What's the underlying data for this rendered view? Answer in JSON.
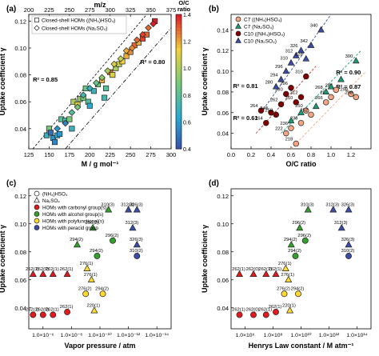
{
  "chart_data": [
    {
      "panel": "(a)",
      "type": "scatter",
      "xlabel": "M / g mol⁻¹",
      "x2label": "m/z",
      "ylabel": "Uptake coefficient γ",
      "xlim": [
        125,
        300
      ],
      "ylim": [
        0.025,
        0.125
      ],
      "x2lim": [
        200,
        375
      ],
      "xticks": [
        125,
        150,
        175,
        200,
        225,
        250,
        275,
        300
      ],
      "x2ticks": [
        200,
        225,
        250,
        275,
        300,
        325,
        350,
        375
      ],
      "yticks": [
        0.04,
        0.06,
        0.08,
        0.1,
        0.12
      ],
      "colorbar": {
        "label": "O/C ratio",
        "min": 0.4,
        "max": 1.4,
        "ticks": [
          0.4,
          0.6,
          0.8,
          1.0,
          1.2,
          1.4
        ]
      },
      "legend": {
        "position": "top-left",
        "entries": [
          "Closed-shell HOMs ((NH₄)HSO₄)",
          "Closed-shell HOMs (Na₂SO₄)"
        ]
      },
      "annotations": [
        "R² = 0.85",
        "R² = 0.80"
      ],
      "series": [
        {
          "name": "Closed-shell HOMs ((NH₄)HSO₄)",
          "marker": "square",
          "points": [
            [
              147,
              0.035,
              0.7
            ],
            [
              150,
              0.04,
              0.9
            ],
            [
              152,
              0.037,
              0.5
            ],
            [
              155,
              0.033,
              0.6
            ],
            [
              157,
              0.03,
              0.55
            ],
            [
              160,
              0.035,
              0.65
            ],
            [
              163,
              0.036,
              0.6
            ],
            [
              165,
              0.047,
              0.8
            ],
            [
              170,
              0.046,
              0.75
            ],
            [
              175,
              0.047,
              0.9
            ],
            [
              178,
              0.04,
              0.7
            ],
            [
              180,
              0.06,
              1.0
            ],
            [
              185,
              0.058,
              1.1
            ],
            [
              188,
              0.062,
              0.95
            ],
            [
              192,
              0.063,
              0.9
            ],
            [
              195,
              0.07,
              0.85
            ],
            [
              198,
              0.06,
              0.8
            ],
            [
              200,
              0.057,
              0.65
            ],
            [
              205,
              0.068,
              0.7
            ],
            [
              210,
              0.073,
              0.9
            ],
            [
              215,
              0.076,
              1.2
            ],
            [
              218,
              0.063,
              0.75
            ],
            [
              220,
              0.07,
              0.8
            ],
            [
              225,
              0.082,
              1.3
            ],
            [
              228,
              0.08,
              1.1
            ],
            [
              232,
              0.085,
              1.0
            ],
            [
              236,
              0.088,
              1.05
            ],
            [
              240,
              0.09,
              1.15
            ],
            [
              245,
              0.094,
              1.2
            ],
            [
              250,
              0.097,
              1.25
            ],
            [
              255,
              0.102,
              1.3
            ],
            [
              260,
              0.104,
              1.2
            ],
            [
              265,
              0.107,
              1.35
            ],
            [
              270,
              0.11,
              1.3
            ],
            [
              280,
              0.12,
              1.4
            ]
          ]
        },
        {
          "name": "Closed-shell HOMs (Na₂SO₄)",
          "marker": "diamond",
          "points": [
            [
              160,
              0.04,
              0.6
            ],
            [
              170,
              0.044,
              0.55
            ],
            [
              178,
              0.052,
              0.8
            ],
            [
              185,
              0.056,
              0.9
            ],
            [
              192,
              0.065,
              0.75
            ],
            [
              200,
              0.07,
              0.7
            ],
            [
              208,
              0.074,
              0.85
            ],
            [
              215,
              0.078,
              0.95
            ],
            [
              222,
              0.083,
              1.0
            ],
            [
              230,
              0.088,
              1.1
            ],
            [
              238,
              0.092,
              1.05
            ],
            [
              245,
              0.098,
              1.2
            ],
            [
              252,
              0.1,
              1.25
            ],
            [
              258,
              0.106,
              1.3
            ],
            [
              265,
              0.11,
              1.35
            ],
            [
              272,
              0.115,
              1.3
            ],
            [
              278,
              0.118,
              1.4
            ]
          ]
        }
      ]
    },
    {
      "panel": "(b)",
      "type": "scatter",
      "xlabel": "O/C ratio",
      "ylabel": "Uptake coefficient γ",
      "xlim": [
        0.0,
        1.4
      ],
      "ylim": [
        0.025,
        0.155
      ],
      "xticks": [
        0.0,
        0.2,
        0.4,
        0.6,
        0.8,
        1.0,
        1.2
      ],
      "yticks": [
        0.04,
        0.06,
        0.08,
        0.1,
        0.12,
        0.14
      ],
      "legend": {
        "position": "top-left",
        "entries": [
          "C7 ((NH₄)HSO₄)",
          "C7 (Na₂SO₄)",
          "C10 ((NH₄)HSO₄)",
          "C10 (Na₂SO₄)"
        ]
      },
      "annotations": [
        "R² = 0.81",
        "R² = 0.90",
        "R² = 0.61",
        "R² = 0.87"
      ],
      "series": [
        {
          "name": "C7 ((NH₄)HSO₄)",
          "marker": "circle",
          "color": "#f4a582",
          "points": [
            [
              0.55,
              0.04,
              "222"
            ],
            [
              0.6,
              0.045,
              "236"
            ],
            [
              0.65,
              0.03,
              "218"
            ],
            [
              0.7,
              0.05,
              "238"
            ],
            [
              0.75,
              0.062,
              "250"
            ],
            [
              0.8,
              0.058,
              "252"
            ],
            [
              0.95,
              0.07,
              "266"
            ],
            [
              1.0,
              0.075,
              "282"
            ],
            [
              1.05,
              0.082,
              "284"
            ],
            [
              1.2,
              0.078,
              "298"
            ],
            [
              1.25,
              0.075,
              "298"
            ]
          ]
        },
        {
          "name": "C7 (Na₂SO₄)",
          "marker": "triangle",
          "color": "#1b9e77",
          "points": [
            [
              0.6,
              0.052,
              ""
            ],
            [
              0.7,
              0.06,
              ""
            ],
            [
              0.85,
              0.066,
              ""
            ],
            [
              0.95,
              0.08,
              "268"
            ],
            [
              1.0,
              0.085,
              ""
            ],
            [
              1.1,
              0.092,
              ""
            ],
            [
              1.25,
              0.11,
              "300"
            ]
          ]
        },
        {
          "name": "C10 ((NH₄)HSO₄)",
          "marker": "circle",
          "color": "#7f0000",
          "points": [
            [
              0.3,
              0.062,
              "264"
            ],
            [
              0.35,
              0.05,
              "264"
            ],
            [
              0.4,
              0.06,
              "248"
            ],
            [
              0.45,
              0.058,
              "250"
            ],
            [
              0.5,
              0.068,
              "262"
            ],
            [
              0.55,
              0.078,
              "280"
            ],
            [
              0.6,
              0.084,
              "296"
            ],
            [
              0.65,
              0.07,
              "310"
            ],
            [
              0.7,
              0.075,
              "312"
            ],
            [
              0.75,
              0.095,
              "310"
            ]
          ]
        },
        {
          "name": "C10 (Na₂SO₄)",
          "marker": "triangle",
          "color": "#3a4ca8",
          "points": [
            [
              0.45,
              0.085,
              "280"
            ],
            [
              0.5,
              0.092,
              "294"
            ],
            [
              0.55,
              0.1,
              "296"
            ],
            [
              0.6,
              0.108,
              "310"
            ],
            [
              0.65,
              0.115,
              "312"
            ],
            [
              0.7,
              0.12,
              "326"
            ],
            [
              0.75,
              0.112,
              "328"
            ],
            [
              0.8,
              0.125,
              "342"
            ],
            [
              0.9,
              0.14,
              "340"
            ]
          ]
        }
      ]
    },
    {
      "panel": "(c)",
      "type": "scatter",
      "xlabel": "Vapor pressure / atm",
      "ylabel": "Uptake coefficient γ",
      "xscale": "log",
      "xlim_exp": [
        -5,
        -15
      ],
      "xticks": [
        "1.0×10⁻⁶",
        "1.0×10⁻⁸",
        "1.0×10⁻¹⁰",
        "1.0×10⁻¹²",
        "1.0×10⁻¹⁴"
      ],
      "ylim": [
        0.025,
        0.125
      ],
      "yticks": [
        0.04,
        0.06,
        0.08,
        0.1,
        0.12
      ],
      "legend": {
        "position": "top-left",
        "entries": [
          "(NH₄)HSO₄",
          "Na₂SO₄",
          "HOMs with carbonyl group(s)",
          "HOMs with alcohol group(s)",
          "HOMs with polyfunctional(s)",
          "HOMs with peracid group"
        ]
      },
      "series": [
        {
          "name": "HOMs with carbonyl group(s)",
          "color": "#e31a1c",
          "points": [
            [
              -5.3,
              0.064,
              "262(1)",
              "triangle"
            ],
            [
              -6.0,
              0.064,
              "262(0)",
              "triangle"
            ],
            [
              -6.7,
              0.064,
              "262(1)",
              "triangle"
            ],
            [
              -7.7,
              0.064,
              "262(1)",
              "triangle"
            ],
            [
              -5.3,
              0.035,
              "262(1)",
              "circle"
            ],
            [
              -6.0,
              0.035,
              "262(0)",
              "circle"
            ],
            [
              -6.7,
              0.035,
              "262(1)",
              "circle"
            ],
            [
              -7.7,
              0.037,
              "262(1)",
              "circle"
            ]
          ]
        },
        {
          "name": "HOMs with alcohol group(s)",
          "color": "#33a02c",
          "points": [
            [
              -8.4,
              0.085,
              "294(2)",
              "triangle"
            ],
            [
              -9.5,
              0.097,
              "296(2)",
              "triangle"
            ],
            [
              -10.6,
              0.11,
              "310(3)",
              "triangle"
            ],
            [
              -9.8,
              0.077,
              "294(2)",
              "circle"
            ],
            [
              -10.9,
              0.088,
              "296(2)",
              "circle"
            ]
          ]
        },
        {
          "name": "HOMs with polyfunctional(s)",
          "color": "#ffd92f",
          "points": [
            [
              -9.1,
              0.068,
              "276(1)",
              "triangle"
            ],
            [
              -9.4,
              0.06,
              "276(1)",
              "triangle"
            ],
            [
              -9.6,
              0.038,
              "220(1)",
              "triangle"
            ],
            [
              -9.0,
              0.05,
              "276(2)",
              "circle"
            ],
            [
              -10.2,
              0.05,
              "294(2)",
              "circle"
            ]
          ]
        },
        {
          "name": "HOMs with peracid group",
          "color": "#3a4ca8",
          "points": [
            [
              -12.0,
              0.11,
              "312(3)",
              "triangle"
            ],
            [
              -12.6,
              0.11,
              "326(3)",
              "triangle"
            ],
            [
              -12.3,
              0.097,
              "312(3)",
              "triangle"
            ],
            [
              -12.6,
              0.085,
              "326(3)",
              "triangle"
            ],
            [
              -12.6,
              0.077,
              "310(2)",
              "circle"
            ]
          ]
        }
      ]
    },
    {
      "panel": "(d)",
      "type": "scatter",
      "xlabel": "Henrys Law constant / M atm⁻¹",
      "ylabel": "Uptake coefficient γ",
      "xscale": "log",
      "xlim_exp": [
        5,
        15
      ],
      "xticks": [
        "1.0×10⁶",
        "1.0×10⁸",
        "1.0×10¹⁰",
        "1.0×10¹²",
        "1.0×10¹⁴"
      ],
      "ylim": [
        0.025,
        0.125
      ],
      "yticks": [
        0.04,
        0.06,
        0.08,
        0.1,
        0.12
      ],
      "series": [
        {
          "name": "HOMs with carbonyl group(s)",
          "color": "#e31a1c",
          "points": [
            [
              5.6,
              0.064,
              "262(1)",
              "triangle"
            ],
            [
              6.6,
              0.064,
              "262(0)",
              "triangle"
            ],
            [
              7.5,
              0.064,
              "262(1)",
              "triangle"
            ],
            [
              8.2,
              0.064,
              "262(1)",
              "triangle"
            ],
            [
              5.6,
              0.035,
              "262(1)",
              "circle"
            ],
            [
              6.6,
              0.035,
              "262(0)",
              "circle"
            ],
            [
              7.5,
              0.035,
              "262(1)",
              "circle"
            ],
            [
              8.2,
              0.037,
              "262(1)",
              "circle"
            ]
          ]
        },
        {
          "name": "HOMs with alcohol group(s)",
          "color": "#33a02c",
          "points": [
            [
              9.3,
              0.085,
              "294(2)",
              "triangle"
            ],
            [
              9.9,
              0.097,
              "296(2)",
              "triangle"
            ],
            [
              10.5,
              0.11,
              "310(3)",
              "triangle"
            ],
            [
              9.6,
              0.077,
              "294(2)",
              "circle"
            ],
            [
              10.3,
              0.088,
              "296(2)",
              "circle"
            ]
          ]
        },
        {
          "name": "HOMs with polyfunctional(s)",
          "color": "#ffd92f",
          "points": [
            [
              8.9,
              0.068,
              "276(1)",
              "triangle"
            ],
            [
              9.1,
              0.06,
              "276(1)",
              "triangle"
            ],
            [
              9.2,
              0.038,
              "220(1)",
              "triangle"
            ],
            [
              8.8,
              0.05,
              "276(2)",
              "circle"
            ],
            [
              9.8,
              0.05,
              "294(2)",
              "circle"
            ]
          ]
        },
        {
          "name": "HOMs with peracid group",
          "color": "#3a4ca8",
          "points": [
            [
              12.3,
              0.11,
              "312(3)",
              "triangle"
            ],
            [
              13.4,
              0.11,
              "326(3)",
              "triangle"
            ],
            [
              12.9,
              0.097,
              "312(3)",
              "triangle"
            ],
            [
              13.4,
              0.085,
              "326(3)",
              "triangle"
            ],
            [
              13.4,
              0.077,
              "310(2)",
              "circle"
            ]
          ]
        }
      ]
    }
  ]
}
